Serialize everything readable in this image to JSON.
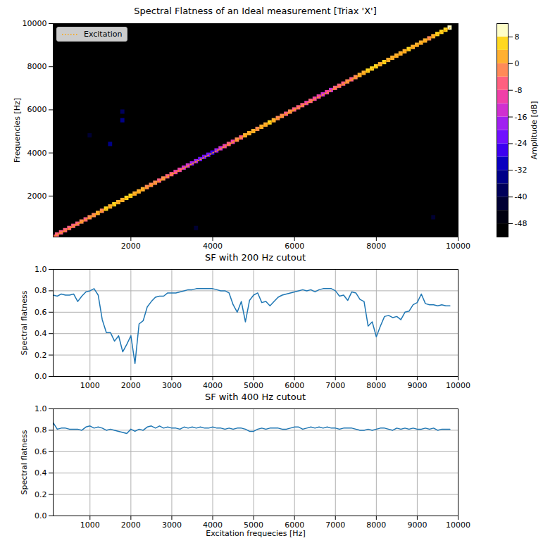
{
  "chart_data": [
    {
      "type": "heatmap",
      "title": "Spectral Flatness of an Ideal measurement [Triax 'X']",
      "ylabel": "Frequencies [Hz]",
      "xlim": [
        100,
        10000
      ],
      "ylim": [
        100,
        10000
      ],
      "xticks": [
        2000,
        4000,
        6000,
        8000,
        10000
      ],
      "yticks": [
        2000,
        4000,
        6000,
        8000,
        10000
      ],
      "cell_width": 100,
      "cell_height": 200,
      "cells": [
        [
          100,
          100,
          -6
        ],
        [
          200,
          200,
          -8
        ],
        [
          300,
          300,
          -6
        ],
        [
          400,
          400,
          -8
        ],
        [
          500,
          500,
          -6
        ],
        [
          600,
          600,
          -8
        ],
        [
          700,
          700,
          -6
        ],
        [
          800,
          800,
          -4
        ],
        [
          900,
          900,
          -6
        ],
        [
          1000,
          1000,
          -2
        ],
        [
          1100,
          1100,
          -2
        ],
        [
          1200,
          1200,
          0
        ],
        [
          1300,
          1300,
          -2
        ],
        [
          1400,
          1400,
          4
        ],
        [
          1500,
          1500,
          2
        ],
        [
          1600,
          1600,
          4
        ],
        [
          1700,
          1700,
          0
        ],
        [
          1800,
          1800,
          2
        ],
        [
          1900,
          1900,
          6
        ],
        [
          2000,
          2000,
          6
        ],
        [
          2100,
          2100,
          2
        ],
        [
          2200,
          2200,
          0
        ],
        [
          2300,
          2300,
          2
        ],
        [
          2400,
          2400,
          -2
        ],
        [
          2500,
          2500,
          -4
        ],
        [
          2600,
          2600,
          -2
        ],
        [
          2700,
          2700,
          -6
        ],
        [
          2800,
          2800,
          -4
        ],
        [
          2900,
          2900,
          -6
        ],
        [
          3000,
          3000,
          -8
        ],
        [
          3100,
          3100,
          -10
        ],
        [
          3200,
          3200,
          -12
        ],
        [
          3300,
          3300,
          -14
        ],
        [
          3400,
          3400,
          -16
        ],
        [
          3500,
          3500,
          -18
        ],
        [
          3600,
          3600,
          -20
        ],
        [
          3700,
          3700,
          -22
        ],
        [
          3800,
          3800,
          -24
        ],
        [
          3900,
          3900,
          -24
        ],
        [
          4000,
          4000,
          -26
        ],
        [
          4100,
          4100,
          -20
        ],
        [
          4200,
          4200,
          -16
        ],
        [
          4300,
          4300,
          -12
        ],
        [
          4400,
          4400,
          -8
        ],
        [
          4500,
          4500,
          -10
        ],
        [
          4600,
          4600,
          -4
        ],
        [
          4700,
          4700,
          -6
        ],
        [
          4800,
          4800,
          0
        ],
        [
          4900,
          4900,
          2
        ],
        [
          5000,
          5000,
          0
        ],
        [
          5100,
          5100,
          -2
        ],
        [
          5200,
          5200,
          0
        ],
        [
          5300,
          5300,
          2
        ],
        [
          5400,
          5400,
          4
        ],
        [
          5500,
          5500,
          2
        ],
        [
          5600,
          5600,
          -2
        ],
        [
          5700,
          5700,
          -4
        ],
        [
          5800,
          5800,
          -6
        ],
        [
          5900,
          5900,
          -4
        ],
        [
          6000,
          6000,
          -8
        ],
        [
          6100,
          6100,
          -6
        ],
        [
          6200,
          6200,
          -8
        ],
        [
          6300,
          6300,
          -10
        ],
        [
          6400,
          6400,
          -8
        ],
        [
          6500,
          6500,
          -12
        ],
        [
          6600,
          6600,
          -10
        ],
        [
          6700,
          6700,
          -14
        ],
        [
          6800,
          6800,
          -12
        ],
        [
          6900,
          6900,
          -14
        ],
        [
          7000,
          7000,
          -8
        ],
        [
          7100,
          7100,
          -6
        ],
        [
          7200,
          7200,
          -8
        ],
        [
          7300,
          7300,
          -4
        ],
        [
          7400,
          7400,
          -6
        ],
        [
          7500,
          7500,
          -2
        ],
        [
          7600,
          7600,
          0
        ],
        [
          7700,
          7700,
          2
        ],
        [
          7800,
          7800,
          4
        ],
        [
          7900,
          7900,
          6
        ],
        [
          8000,
          8000,
          4
        ],
        [
          8100,
          8100,
          2
        ],
        [
          8200,
          8200,
          4
        ],
        [
          8300,
          8300,
          2
        ],
        [
          8400,
          8400,
          0
        ],
        [
          8500,
          8500,
          2
        ],
        [
          8600,
          8600,
          0
        ],
        [
          8700,
          8700,
          2
        ],
        [
          8800,
          8800,
          4
        ],
        [
          8900,
          8900,
          2
        ],
        [
          9000,
          9000,
          0
        ],
        [
          9100,
          9100,
          2
        ],
        [
          9200,
          9200,
          0
        ],
        [
          9300,
          9300,
          -2
        ],
        [
          9400,
          9400,
          0
        ],
        [
          9500,
          9500,
          4
        ],
        [
          9600,
          9600,
          6
        ],
        [
          9700,
          9700,
          6
        ],
        [
          9800,
          9800,
          8
        ],
        [
          1800,
          5500,
          -36
        ],
        [
          1800,
          5900,
          -40
        ],
        [
          1500,
          4400,
          -36
        ],
        [
          1000,
          4800,
          -44
        ],
        [
          3600,
          500,
          -44
        ],
        [
          9400,
          1000,
          -44
        ]
      ],
      "series": [
        {
          "name": "Excitation",
          "type": "line",
          "color": "#ffa500",
          "line_style": "dotted",
          "x": [
            100,
            9800
          ],
          "values": [
            100,
            9800
          ]
        }
      ],
      "legend": "upper left",
      "colorbar": {
        "label": "Amplitude [dB]",
        "range": [
          -52,
          12
        ],
        "ticks": [
          8,
          0,
          -8,
          -16,
          -24,
          -32,
          -40,
          -48
        ],
        "levels": [
          -52,
          -48,
          -44,
          -40,
          -36,
          -32,
          -28,
          -24,
          -20,
          -16,
          -12,
          -8,
          -4,
          0,
          4,
          8,
          12
        ],
        "colors": [
          "#000000",
          "#000010",
          "#000033",
          "#00005a",
          "#000088",
          "#0a00c0",
          "#3c00f0",
          "#7010ff",
          "#a020f0",
          "#d030d0",
          "#f040a8",
          "#ff6080",
          "#ff8a58",
          "#ffb030",
          "#ffd820",
          "#ffffc8"
        ]
      }
    },
    {
      "type": "line",
      "title": "SF with 200 Hz cutout",
      "ylabel": "Spectral flatness",
      "xlim": [
        100,
        10000
      ],
      "ylim": [
        0,
        1
      ],
      "xticks": [
        1000,
        2000,
        3000,
        4000,
        5000,
        6000,
        7000,
        8000,
        9000,
        10000
      ],
      "yticks": [
        {
          "value": 0,
          "label": "0.0"
        },
        0.2,
        0.4,
        0.6,
        0.8,
        {
          "value": 1,
          "label": "1.0"
        }
      ],
      "grid": true,
      "x": [
        100,
        200,
        300,
        400,
        500,
        600,
        700,
        800,
        900,
        1000,
        1100,
        1200,
        1300,
        1400,
        1500,
        1600,
        1700,
        1800,
        1900,
        2000,
        2100,
        2200,
        2300,
        2400,
        2500,
        2600,
        2700,
        2800,
        2900,
        3000,
        3100,
        3200,
        3300,
        3400,
        3500,
        3600,
        3700,
        3800,
        3900,
        4000,
        4100,
        4200,
        4300,
        4400,
        4500,
        4600,
        4700,
        4800,
        4900,
        5000,
        5100,
        5200,
        5300,
        5400,
        5500,
        5600,
        5700,
        5800,
        5900,
        6000,
        6100,
        6200,
        6300,
        6400,
        6500,
        6600,
        6700,
        6800,
        6900,
        7000,
        7100,
        7200,
        7300,
        7400,
        7500,
        7600,
        7700,
        7800,
        7900,
        8000,
        8100,
        8200,
        8300,
        8400,
        8500,
        8600,
        8700,
        8800,
        8900,
        9000,
        9100,
        9200,
        9300,
        9400,
        9500,
        9600,
        9700,
        9800
      ],
      "series": [
        {
          "color": "#1f77b4",
          "values": [
            0.76,
            0.75,
            0.77,
            0.76,
            0.76,
            0.77,
            0.7,
            0.75,
            0.79,
            0.8,
            0.82,
            0.76,
            0.53,
            0.41,
            0.41,
            0.33,
            0.38,
            0.23,
            0.3,
            0.38,
            0.12,
            0.49,
            0.52,
            0.65,
            0.7,
            0.74,
            0.75,
            0.75,
            0.78,
            0.78,
            0.78,
            0.79,
            0.8,
            0.81,
            0.81,
            0.82,
            0.82,
            0.82,
            0.82,
            0.82,
            0.81,
            0.8,
            0.8,
            0.78,
            0.67,
            0.6,
            0.7,
            0.51,
            0.71,
            0.76,
            0.78,
            0.69,
            0.7,
            0.66,
            0.7,
            0.74,
            0.76,
            0.77,
            0.78,
            0.79,
            0.8,
            0.81,
            0.8,
            0.81,
            0.79,
            0.81,
            0.82,
            0.82,
            0.82,
            0.8,
            0.75,
            0.76,
            0.71,
            0.79,
            0.78,
            0.72,
            0.7,
            0.47,
            0.51,
            0.37,
            0.47,
            0.56,
            0.57,
            0.55,
            0.56,
            0.53,
            0.6,
            0.61,
            0.67,
            0.69,
            0.77,
            0.68,
            0.67,
            0.67,
            0.66,
            0.67,
            0.66,
            0.66
          ]
        }
      ]
    },
    {
      "type": "line",
      "title": "SF with 400 Hz cutout",
      "ylabel": "Spectral flatness",
      "xlabel": "Excitation frequecies [Hz]",
      "xlim": [
        100,
        10000
      ],
      "ylim": [
        0,
        1
      ],
      "xticks": [
        1000,
        2000,
        3000,
        4000,
        5000,
        6000,
        7000,
        8000,
        9000,
        10000
      ],
      "yticks": [
        {
          "value": 0,
          "label": "0.0"
        },
        0.2,
        0.4,
        0.6,
        0.8,
        {
          "value": 1,
          "label": "1.0"
        }
      ],
      "grid": true,
      "x": [
        100,
        200,
        300,
        400,
        500,
        600,
        700,
        800,
        900,
        1000,
        1100,
        1200,
        1300,
        1400,
        1500,
        1600,
        1700,
        1800,
        1900,
        2000,
        2100,
        2200,
        2300,
        2400,
        2500,
        2600,
        2700,
        2800,
        2900,
        3000,
        3100,
        3200,
        3300,
        3400,
        3500,
        3600,
        3700,
        3800,
        3900,
        4000,
        4100,
        4200,
        4300,
        4400,
        4500,
        4600,
        4700,
        4800,
        4900,
        5000,
        5100,
        5200,
        5300,
        5400,
        5500,
        5600,
        5700,
        5800,
        5900,
        6000,
        6100,
        6200,
        6300,
        6400,
        6500,
        6600,
        6700,
        6800,
        6900,
        7000,
        7100,
        7200,
        7300,
        7400,
        7500,
        7600,
        7700,
        7800,
        7900,
        8000,
        8100,
        8200,
        8300,
        8400,
        8500,
        8600,
        8700,
        8800,
        8900,
        9000,
        9100,
        9200,
        9300,
        9400,
        9500,
        9600,
        9700,
        9800
      ],
      "series": [
        {
          "color": "#1f77b4",
          "values": [
            0.87,
            0.81,
            0.82,
            0.82,
            0.81,
            0.81,
            0.81,
            0.8,
            0.83,
            0.84,
            0.82,
            0.83,
            0.82,
            0.8,
            0.81,
            0.8,
            0.79,
            0.78,
            0.77,
            0.81,
            0.79,
            0.81,
            0.8,
            0.83,
            0.84,
            0.82,
            0.84,
            0.82,
            0.83,
            0.82,
            0.82,
            0.81,
            0.83,
            0.82,
            0.83,
            0.82,
            0.83,
            0.82,
            0.82,
            0.83,
            0.82,
            0.82,
            0.81,
            0.82,
            0.81,
            0.82,
            0.82,
            0.81,
            0.79,
            0.79,
            0.81,
            0.82,
            0.81,
            0.82,
            0.82,
            0.82,
            0.81,
            0.81,
            0.82,
            0.83,
            0.83,
            0.81,
            0.82,
            0.83,
            0.82,
            0.83,
            0.82,
            0.83,
            0.82,
            0.82,
            0.81,
            0.82,
            0.82,
            0.82,
            0.81,
            0.8,
            0.8,
            0.81,
            0.8,
            0.81,
            0.82,
            0.82,
            0.81,
            0.8,
            0.82,
            0.81,
            0.82,
            0.81,
            0.82,
            0.81,
            0.81,
            0.82,
            0.81,
            0.82,
            0.8,
            0.81,
            0.81,
            0.81
          ]
        }
      ]
    }
  ]
}
